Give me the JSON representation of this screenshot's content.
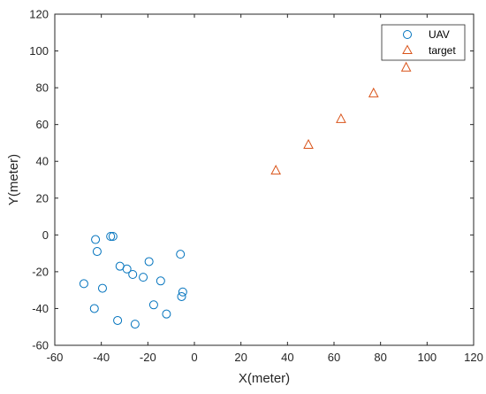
{
  "chart_data": {
    "type": "scatter",
    "xlabel": "X(meter)",
    "ylabel": "Y(meter)",
    "xlim": [
      -60,
      120
    ],
    "ylim": [
      -60,
      120
    ],
    "xticks": [
      -60,
      -40,
      -20,
      0,
      20,
      40,
      60,
      80,
      100,
      120
    ],
    "yticks": [
      -60,
      -40,
      -20,
      0,
      20,
      40,
      60,
      80,
      100,
      120
    ],
    "grid": false,
    "legend_position": "top-right",
    "series": [
      {
        "name": "UAV",
        "marker": "circle",
        "color": "#0072BD",
        "points": [
          [
            -42.5,
            -2.5
          ],
          [
            -41.8,
            -9.0
          ],
          [
            -36.0,
            -0.8
          ],
          [
            -35.0,
            -0.8
          ],
          [
            -32.0,
            -17.0
          ],
          [
            -29.0,
            -18.5
          ],
          [
            -26.5,
            -21.5
          ],
          [
            -19.5,
            -14.5
          ],
          [
            -22.0,
            -23.0
          ],
          [
            -14.5,
            -25.0
          ],
          [
            -6.0,
            -10.5
          ],
          [
            -47.5,
            -26.5
          ],
          [
            -39.5,
            -29.0
          ],
          [
            -5.0,
            -31.0
          ],
          [
            -5.5,
            -33.5
          ],
          [
            -43.0,
            -40.0
          ],
          [
            -17.5,
            -38.0
          ],
          [
            -12.0,
            -43.0
          ],
          [
            -33.0,
            -46.5
          ],
          [
            -25.5,
            -48.5
          ]
        ]
      },
      {
        "name": "target",
        "marker": "triangle",
        "color": "#D95319",
        "points": [
          [
            35,
            35
          ],
          [
            49,
            49
          ],
          [
            63,
            63
          ],
          [
            77,
            77
          ],
          [
            91,
            91
          ]
        ]
      }
    ]
  }
}
